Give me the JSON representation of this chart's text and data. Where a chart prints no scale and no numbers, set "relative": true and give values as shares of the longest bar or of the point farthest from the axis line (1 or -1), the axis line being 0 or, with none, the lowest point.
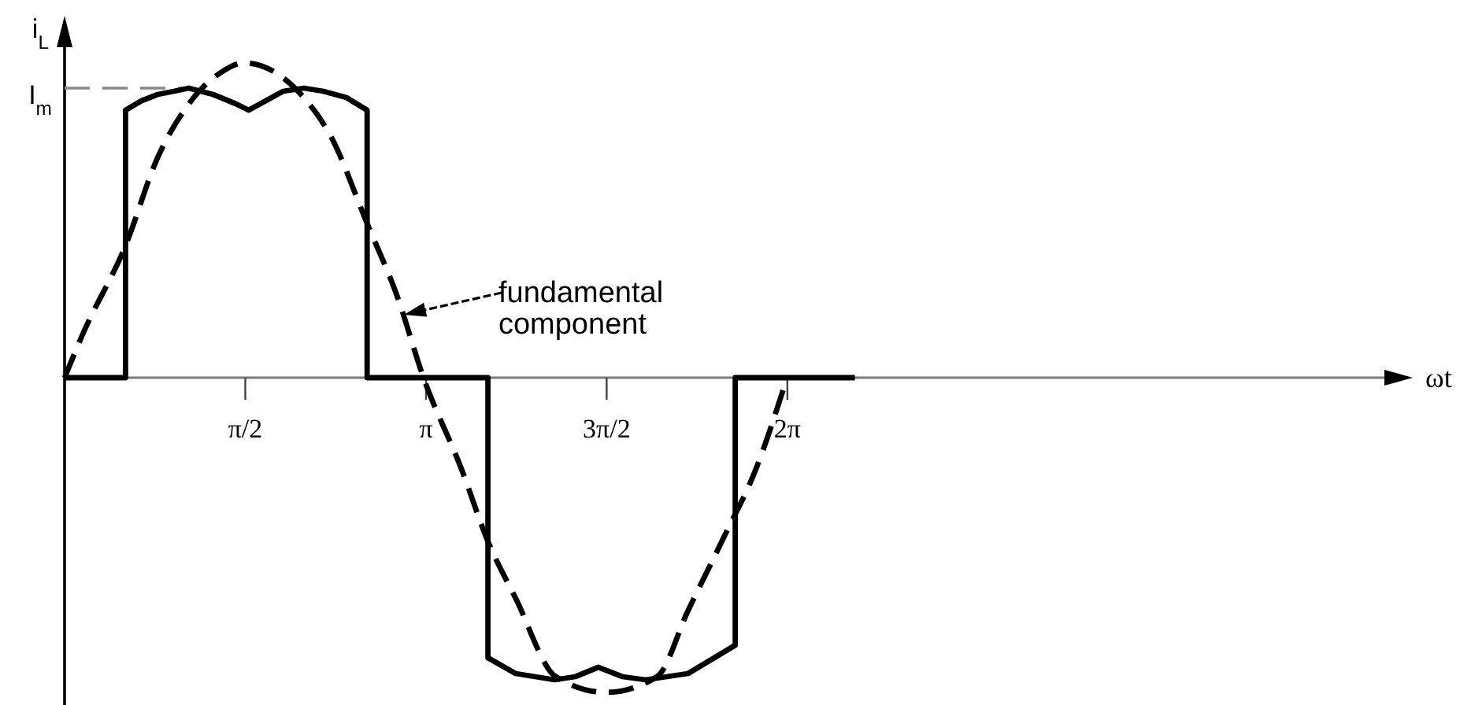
{
  "chart_data": {
    "type": "line",
    "ylabel": "i$_{L}$",
    "xlabel": "ωt",
    "relative": true,
    "xlim": [
      0,
      11.5
    ],
    "xticks": [
      {
        "value": 1.571,
        "label": "π/2"
      },
      {
        "value": 3.142,
        "label": "π"
      },
      {
        "value": 4.712,
        "label": "3π/2"
      },
      {
        "value": 6.283,
        "label": "2π"
      }
    ],
    "series": [
      {
        "color": "#000000",
        "line_style": "solid",
        "x": [
          0,
          0.53,
          0.53,
          0.67,
          0.81,
          0.95,
          1.08,
          1.29,
          1.49,
          1.6,
          1.7,
          1.9,
          2.08,
          2.25,
          2.45,
          2.63,
          2.63,
          3.68,
          3.68,
          3.92,
          4.26,
          4.44,
          4.64,
          4.85,
          5.05,
          5.42,
          5.83,
          5.83,
          6.87
        ],
        "values": [
          0,
          0,
          0.85,
          0.88,
          0.9,
          0.91,
          0.92,
          0.9,
          0.87,
          0.85,
          0.87,
          0.91,
          0.92,
          0.91,
          0.89,
          0.85,
          0,
          0,
          -0.89,
          -0.94,
          -0.96,
          -0.95,
          -0.92,
          -0.95,
          -0.96,
          -0.94,
          -0.85,
          0,
          0
        ]
      },
      {
        "color": "#000000",
        "line_style": "dashed",
        "x": [
          0,
          0.16,
          0.53,
          0.81,
          1.08,
          1.36,
          1.56,
          1.83,
          2.08,
          2.31,
          2.63,
          2.89,
          3.12,
          3.45,
          3.68,
          3.92,
          4.27,
          4.71,
          5.15,
          5.42,
          5.74,
          6.01,
          6.28
        ],
        "values": [
          0,
          0.14,
          0.42,
          0.7,
          0.87,
          0.97,
          1,
          0.97,
          0.89,
          0.77,
          0.49,
          0.26,
          0,
          -0.29,
          -0.52,
          -0.7,
          -0.95,
          -1,
          -0.95,
          -0.74,
          -0.5,
          -0.29,
          0
        ]
      }
    ],
    "ref_lines": [
      {
        "axis": "y",
        "value": 0.92,
        "label": "I$_{m}$",
        "color": "#888888",
        "line_style": "dashed"
      }
    ],
    "annotations": [
      {
        "text": "fundamental component",
        "x": 2.95,
        "y": 0.2
      }
    ]
  }
}
